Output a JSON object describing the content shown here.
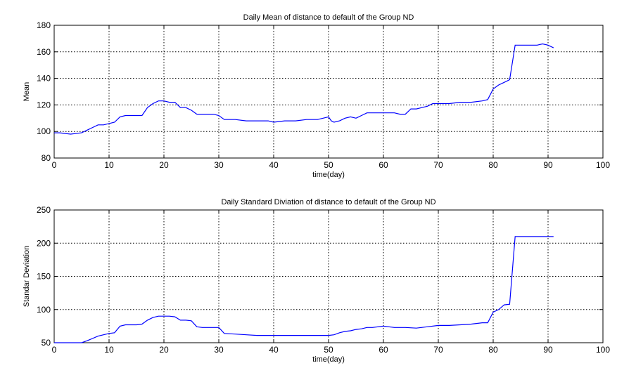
{
  "chart_data": [
    {
      "type": "line",
      "title": "Daily Mean of distance to default of the Group ND",
      "xlabel": "time(day)",
      "ylabel": "Mean",
      "xlim": [
        0,
        100
      ],
      "ylim": [
        80,
        180
      ],
      "xticks": [
        0,
        10,
        20,
        30,
        40,
        50,
        60,
        70,
        80,
        90,
        100
      ],
      "yticks": [
        80,
        100,
        120,
        140,
        160,
        180
      ],
      "grid": true,
      "line_color": "#0000ff",
      "series": [
        {
          "x": [
            0,
            1,
            3,
            5,
            6,
            8,
            9,
            10,
            11,
            12,
            13,
            14,
            15,
            16,
            17,
            18,
            19,
            20,
            21,
            22,
            23,
            24,
            25,
            26,
            27,
            28,
            29,
            30,
            31,
            33,
            35,
            37,
            39,
            40,
            42,
            44,
            46,
            48,
            49,
            50,
            50.5,
            51,
            52,
            53,
            54,
            55,
            56,
            57,
            58,
            60,
            62,
            63,
            64,
            65,
            66,
            67,
            68,
            69,
            70,
            72,
            74,
            76,
            78,
            79,
            80,
            81,
            82,
            83,
            84,
            85,
            86,
            87,
            88,
            89,
            90,
            91
          ],
          "y": [
            99,
            99,
            98,
            99,
            101,
            105,
            105,
            106,
            107,
            111,
            112,
            112,
            112,
            112,
            118,
            121,
            123,
            123,
            122,
            122,
            118,
            118,
            116,
            113,
            113,
            113,
            113,
            112,
            109,
            109,
            108,
            108,
            108,
            107,
            108,
            108,
            109,
            109,
            110,
            111,
            108,
            107,
            108,
            110,
            111,
            110,
            112,
            114,
            114,
            114,
            114,
            113,
            113,
            117,
            117,
            118,
            119,
            121,
            121,
            121,
            122,
            122,
            123,
            124,
            132,
            135,
            137,
            139,
            165,
            165,
            165,
            165,
            165,
            166,
            165,
            163
          ]
        }
      ]
    },
    {
      "type": "line",
      "title": "Daily Standard Diviation of distance to default of the Group ND",
      "xlabel": "time(day)",
      "ylabel": "Standar Deviation",
      "xlim": [
        0,
        100
      ],
      "ylim": [
        50,
        250
      ],
      "xticks": [
        0,
        10,
        20,
        30,
        40,
        50,
        60,
        70,
        80,
        90,
        100
      ],
      "yticks": [
        50,
        100,
        150,
        200,
        250
      ],
      "grid": true,
      "line_color": "#0000ff",
      "series": [
        {
          "x": [
            0,
            1,
            3,
            5,
            6,
            8,
            9,
            10,
            11,
            12,
            13,
            14,
            15,
            16,
            17,
            18,
            19,
            20,
            21,
            22,
            23,
            24,
            25,
            26,
            27,
            28,
            29,
            30,
            31,
            33,
            35,
            37,
            39,
            40,
            42,
            44,
            46,
            48,
            49,
            50,
            51,
            52,
            53,
            54,
            55,
            56,
            57,
            58,
            60,
            62,
            64,
            66,
            68,
            70,
            72,
            74,
            76,
            78,
            79,
            80,
            81,
            82,
            83,
            84,
            85,
            86,
            87,
            88,
            89,
            90,
            91
          ],
          "y": [
            50,
            50,
            50,
            50,
            53,
            60,
            62,
            64,
            65,
            75,
            77,
            77,
            77,
            78,
            84,
            88,
            90,
            90,
            90,
            89,
            84,
            84,
            83,
            74,
            73,
            73,
            73,
            73,
            64,
            63,
            62,
            61,
            61,
            61,
            61,
            61,
            61,
            61,
            61,
            61,
            62,
            65,
            67,
            68,
            70,
            71,
            73,
            73,
            75,
            73,
            73,
            72,
            74,
            76,
            76,
            77,
            78,
            80,
            80,
            96,
            100,
            107,
            108,
            210,
            210,
            210,
            210,
            210,
            210,
            210,
            210
          ]
        }
      ]
    }
  ]
}
